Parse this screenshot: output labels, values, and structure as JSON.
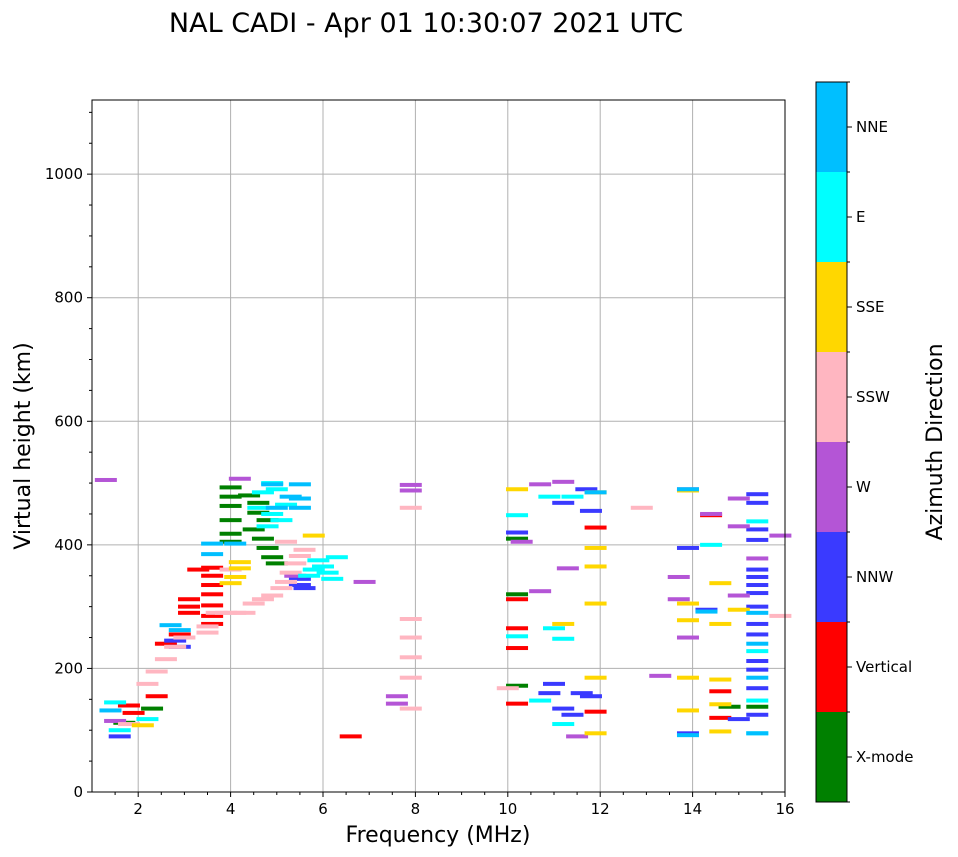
{
  "chart_data": {
    "type": "scatter",
    "title": "NAL CADI - Apr 01 10:30:07 2021 UTC",
    "xlabel": "Frequency (MHz)",
    "ylabel": "Virtual height (km)",
    "xlim": [
      1,
      16
    ],
    "ylim": [
      0,
      1120
    ],
    "xticks": [
      2,
      4,
      6,
      8,
      10,
      12,
      14,
      16
    ],
    "yticks": [
      0,
      200,
      400,
      600,
      800,
      1000
    ],
    "xtick_labels": [
      "2",
      "4",
      "6",
      "8",
      "10",
      "12",
      "14",
      "16"
    ],
    "ytick_labels": [
      "0",
      "200",
      "400",
      "600",
      "800",
      "1000"
    ],
    "grid": true,
    "colorbar": {
      "title": "Azimuth Direction",
      "categories": [
        {
          "label": "X-mode",
          "color": "#008000"
        },
        {
          "label": "Vertical",
          "color": "#ff0000"
        },
        {
          "label": "NNW",
          "color": "#3a3aff"
        },
        {
          "label": "W",
          "color": "#b455d6"
        },
        {
          "label": "SSW",
          "color": "#ffb6c1"
        },
        {
          "label": "SSE",
          "color": "#ffd700"
        },
        {
          "label": "E",
          "color": "#00ffff"
        },
        {
          "label": "NNE",
          "color": "#00bfff"
        }
      ]
    },
    "series": [
      {
        "name": "X-mode",
        "points": [
          [
            4.0,
            493
          ],
          [
            4.0,
            478
          ],
          [
            4.0,
            463
          ],
          [
            4.0,
            440
          ],
          [
            4.0,
            418
          ],
          [
            4.0,
            405
          ],
          [
            4.4,
            480
          ],
          [
            4.6,
            468
          ],
          [
            4.6,
            452
          ],
          [
            4.8,
            440
          ],
          [
            4.5,
            425
          ],
          [
            4.7,
            410
          ],
          [
            4.8,
            395
          ],
          [
            4.9,
            380
          ],
          [
            5.0,
            370
          ],
          [
            10.2,
            410
          ],
          [
            10.2,
            320
          ],
          [
            10.2,
            172
          ],
          [
            14.8,
            138
          ],
          [
            15.4,
            138
          ],
          [
            2.3,
            135
          ],
          [
            1.7,
            112
          ]
        ]
      },
      {
        "name": "Vertical",
        "points": [
          [
            3.6,
            363
          ],
          [
            3.6,
            350
          ],
          [
            3.6,
            335
          ],
          [
            3.6,
            320
          ],
          [
            3.6,
            302
          ],
          [
            3.6,
            285
          ],
          [
            3.6,
            272
          ],
          [
            3.1,
            312
          ],
          [
            3.1,
            300
          ],
          [
            3.1,
            290
          ],
          [
            3.3,
            360
          ],
          [
            2.9,
            255
          ],
          [
            6.6,
            90
          ],
          [
            10.2,
            312
          ],
          [
            10.2,
            265
          ],
          [
            10.2,
            233
          ],
          [
            10.2,
            143
          ],
          [
            11.9,
            428
          ],
          [
            11.9,
            130
          ],
          [
            14.6,
            163
          ],
          [
            14.6,
            120
          ],
          [
            14.4,
            448
          ],
          [
            1.8,
            140
          ],
          [
            1.9,
            128
          ],
          [
            2.4,
            155
          ],
          [
            2.6,
            240
          ]
        ]
      },
      {
        "name": "NNW",
        "points": [
          [
            5.5,
            335
          ],
          [
            5.5,
            345
          ],
          [
            5.6,
            330
          ],
          [
            2.9,
            235
          ],
          [
            2.8,
            245
          ],
          [
            10.2,
            420
          ],
          [
            11.2,
            468
          ],
          [
            11.2,
            135
          ],
          [
            11.7,
            490
          ],
          [
            11.8,
            455
          ],
          [
            11.8,
            155
          ],
          [
            11.6,
            160
          ],
          [
            11.4,
            125
          ],
          [
            13.9,
            395
          ],
          [
            13.9,
            95
          ],
          [
            14.3,
            295
          ],
          [
            15.0,
            118
          ],
          [
            15.4,
            482
          ],
          [
            15.4,
            468
          ],
          [
            15.4,
            425
          ],
          [
            15.4,
            408
          ],
          [
            15.4,
            360
          ],
          [
            15.4,
            348
          ],
          [
            15.4,
            335
          ],
          [
            15.4,
            322
          ],
          [
            15.4,
            300
          ],
          [
            15.4,
            272
          ],
          [
            15.4,
            255
          ],
          [
            15.4,
            212
          ],
          [
            15.4,
            198
          ],
          [
            15.4,
            168
          ],
          [
            15.4,
            125
          ],
          [
            1.6,
            90
          ],
          [
            10.9,
            160
          ],
          [
            11.0,
            175
          ]
        ]
      },
      {
        "name": "W",
        "points": [
          [
            4.2,
            507
          ],
          [
            6.9,
            340
          ],
          [
            7.6,
            155
          ],
          [
            7.6,
            143
          ],
          [
            1.3,
            505
          ],
          [
            7.9,
            497
          ],
          [
            7.9,
            488
          ],
          [
            10.3,
            405
          ],
          [
            10.7,
            325
          ],
          [
            10.7,
            498
          ],
          [
            11.2,
            502
          ],
          [
            11.3,
            362
          ],
          [
            11.5,
            90
          ],
          [
            13.3,
            188
          ],
          [
            13.7,
            348
          ],
          [
            13.7,
            312
          ],
          [
            13.9,
            490
          ],
          [
            13.9,
            250
          ],
          [
            14.4,
            450
          ],
          [
            15.0,
            475
          ],
          [
            15.0,
            430
          ],
          [
            15.0,
            318
          ],
          [
            15.4,
            378
          ],
          [
            15.9,
            415
          ],
          [
            5.4,
            350
          ],
          [
            1.5,
            115
          ]
        ]
      },
      {
        "name": "SSW",
        "points": [
          [
            3.5,
            258
          ],
          [
            3.5,
            268
          ],
          [
            3.7,
            290
          ],
          [
            3.9,
            290
          ],
          [
            4.1,
            290
          ],
          [
            4.3,
            290
          ],
          [
            4.5,
            305
          ],
          [
            4.7,
            312
          ],
          [
            4.9,
            318
          ],
          [
            5.1,
            330
          ],
          [
            5.2,
            340
          ],
          [
            5.3,
            355
          ],
          [
            5.4,
            370
          ],
          [
            5.5,
            382
          ],
          [
            5.6,
            392
          ],
          [
            5.2,
            405
          ],
          [
            3.0,
            250
          ],
          [
            2.8,
            235
          ],
          [
            2.6,
            215
          ],
          [
            2.4,
            195
          ],
          [
            2.2,
            175
          ],
          [
            12.9,
            460
          ],
          [
            15.9,
            285
          ],
          [
            10.0,
            168
          ],
          [
            7.9,
            460
          ],
          [
            7.9,
            280
          ],
          [
            7.9,
            250
          ],
          [
            7.9,
            218
          ],
          [
            7.9,
            185
          ],
          [
            7.9,
            135
          ],
          [
            1.8,
            110
          ],
          [
            4.0,
            360
          ]
        ]
      },
      {
        "name": "SSE",
        "points": [
          [
            4.2,
            372
          ],
          [
            4.2,
            362
          ],
          [
            4.1,
            348
          ],
          [
            4.0,
            338
          ],
          [
            10.2,
            490
          ],
          [
            11.2,
            272
          ],
          [
            11.9,
            485
          ],
          [
            11.9,
            395
          ],
          [
            11.9,
            365
          ],
          [
            11.9,
            305
          ],
          [
            11.9,
            185
          ],
          [
            11.9,
            95
          ],
          [
            13.9,
            488
          ],
          [
            13.9,
            305
          ],
          [
            13.9,
            278
          ],
          [
            13.9,
            185
          ],
          [
            13.9,
            132
          ],
          [
            14.6,
            338
          ],
          [
            14.6,
            272
          ],
          [
            14.6,
            182
          ],
          [
            14.6,
            142
          ],
          [
            14.6,
            98
          ],
          [
            15.0,
            295
          ],
          [
            5.8,
            415
          ],
          [
            2.1,
            108
          ]
        ]
      },
      {
        "name": "E",
        "points": [
          [
            5.9,
            375
          ],
          [
            6.0,
            365
          ],
          [
            6.1,
            355
          ],
          [
            6.2,
            345
          ],
          [
            5.8,
            360
          ],
          [
            5.7,
            350
          ],
          [
            6.3,
            380
          ],
          [
            4.9,
            500
          ],
          [
            5.0,
            490
          ],
          [
            4.7,
            485
          ],
          [
            4.6,
            460
          ],
          [
            4.9,
            450
          ],
          [
            5.1,
            440
          ],
          [
            5.2,
            465
          ],
          [
            4.8,
            430
          ],
          [
            10.2,
            448
          ],
          [
            10.2,
            252
          ],
          [
            10.9,
            478
          ],
          [
            11.2,
            248
          ],
          [
            11.0,
            265
          ],
          [
            11.2,
            110
          ],
          [
            11.4,
            478
          ],
          [
            14.4,
            400
          ],
          [
            15.4,
            438
          ],
          [
            15.4,
            228
          ],
          [
            15.4,
            148
          ],
          [
            15.4,
            95
          ],
          [
            1.6,
            100
          ],
          [
            1.5,
            145
          ],
          [
            2.2,
            118
          ],
          [
            10.7,
            148
          ]
        ]
      },
      {
        "name": "NNE",
        "points": [
          [
            3.6,
            402
          ],
          [
            3.6,
            385
          ],
          [
            4.1,
            402
          ],
          [
            5.5,
            498
          ],
          [
            5.5,
            475
          ],
          [
            5.5,
            460
          ],
          [
            4.9,
            498
          ],
          [
            5.0,
            460
          ],
          [
            5.3,
            478
          ],
          [
            13.9,
            490
          ],
          [
            13.9,
            92
          ],
          [
            14.3,
            292
          ],
          [
            15.4,
            290
          ],
          [
            15.4,
            240
          ],
          [
            15.4,
            185
          ],
          [
            15.4,
            95
          ],
          [
            11.9,
            485
          ],
          [
            2.7,
            270
          ],
          [
            2.9,
            262
          ],
          [
            1.4,
            132
          ]
        ]
      }
    ]
  }
}
